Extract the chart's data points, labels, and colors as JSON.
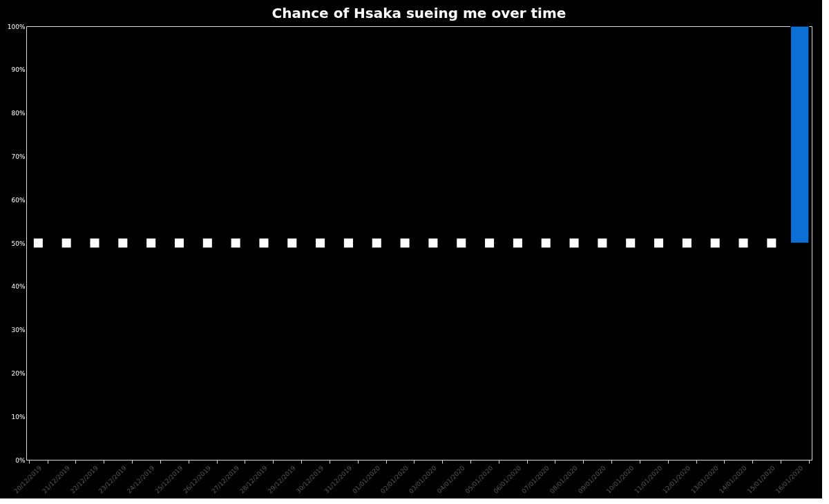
{
  "chart_data": {
    "type": "bar",
    "title": "Chance of Hsaka sueing me over time",
    "categories": [
      "20/12/2019",
      "21/12/2019",
      "22/12/2019",
      "23/12/2019",
      "24/12/2019",
      "25/12/2019",
      "26/12/2019",
      "27/12/2019",
      "28/12/2019",
      "29/12/2019",
      "30/12/2019",
      "31/12/2019",
      "01/01/2020",
      "02/01/2020",
      "03/01/2020",
      "04/01/2020",
      "05/01/2020",
      "06/01/2020",
      "07/01/2020",
      "08/01/2020",
      "09/01/2020",
      "10/01/2020",
      "11/01/2020",
      "12/01/2020",
      "13/01/2020",
      "14/01/2020",
      "15/01/2020",
      "16/01/2020"
    ],
    "series": [
      {
        "type": "scatter",
        "color": "#ffffff",
        "values": [
          50,
          50,
          50,
          50,
          50,
          50,
          50,
          50,
          50,
          50,
          50,
          50,
          50,
          50,
          50,
          50,
          50,
          50,
          50,
          50,
          50,
          50,
          50,
          50,
          50,
          50,
          50,
          null
        ]
      },
      {
        "color": "#0b6fd6",
        "values": [
          null,
          null,
          null,
          null,
          null,
          null,
          null,
          null,
          null,
          null,
          null,
          null,
          null,
          null,
          null,
          null,
          null,
          null,
          null,
          null,
          null,
          null,
          null,
          null,
          null,
          null,
          null,
          50
        ],
        "base": [
          null,
          null,
          null,
          null,
          null,
          null,
          null,
          null,
          null,
          null,
          null,
          null,
          null,
          null,
          null,
          null,
          null,
          null,
          null,
          null,
          null,
          null,
          null,
          null,
          null,
          null,
          null,
          50
        ]
      }
    ],
    "marker": "square",
    "ylim": [
      0,
      100
    ],
    "yticks": [
      {
        "value": 0,
        "label": "0%"
      },
      {
        "value": 10,
        "label": "10%"
      },
      {
        "value": 20,
        "label": "20%"
      },
      {
        "value": 30,
        "label": "30%"
      },
      {
        "value": 40,
        "label": "40%"
      },
      {
        "value": 50,
        "label": "50%"
      },
      {
        "value": 60,
        "label": "60%"
      },
      {
        "value": 70,
        "label": "70%"
      },
      {
        "value": 80,
        "label": "80%"
      },
      {
        "value": 90,
        "label": "90%"
      },
      {
        "value": 100,
        "label": "100%"
      }
    ],
    "grid": false
  }
}
